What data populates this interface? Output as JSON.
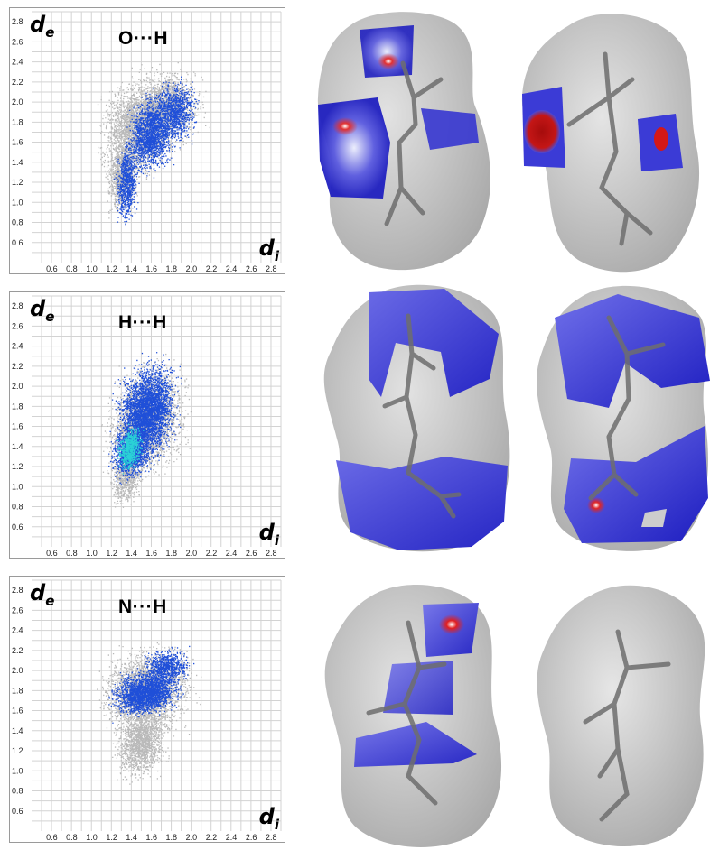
{
  "axes": {
    "de_symbol": "d",
    "de_sub": "e",
    "di_symbol": "d",
    "di_sub": "i",
    "range": [
      0.4,
      2.9
    ],
    "y_ticks": [
      "2.8",
      "2.6",
      "2.4",
      "2.2",
      "2.0",
      "1.8",
      "1.6",
      "1.4",
      "1.2",
      "1.0",
      "0.8",
      "0.6"
    ],
    "x_ticks": [
      "0.6",
      "0.8",
      "1.0",
      "1.2",
      "1.4",
      "1.6",
      "1.8",
      "2.0",
      "2.2",
      "2.4",
      "2.6",
      "2.8"
    ]
  },
  "panels": [
    {
      "contact": "O···H"
    },
    {
      "contact": "H···H"
    },
    {
      "contact": "N···H"
    }
  ],
  "colors": {
    "fingerprint_gray": "#b9b9b9",
    "fingerprint_blue": "#1f4fd8",
    "fingerprint_cyan": "#2ad1d6",
    "surface_gray": "#cbcbcb",
    "surface_blue": "#2323c8",
    "surface_red": "#d01a1a",
    "bond_gray": "#6e6e6e",
    "oxygen_red": "#d84a4a"
  }
}
